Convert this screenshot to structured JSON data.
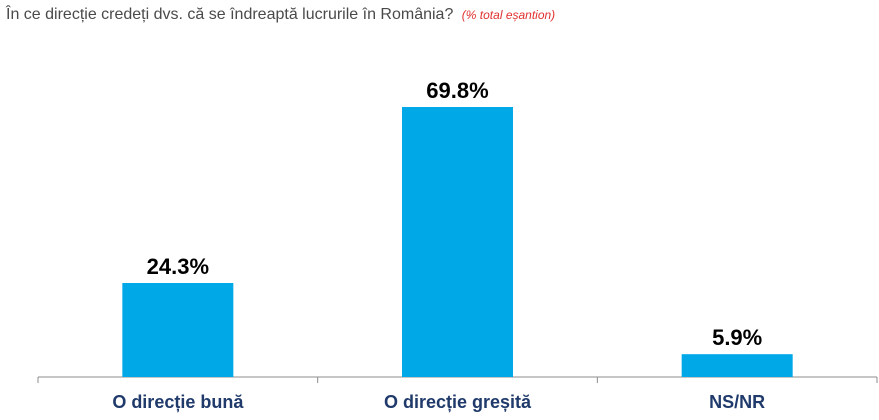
{
  "colors": {
    "bar": "#00A8E8",
    "category_label": "#1F3A6B",
    "value_label": "#000000",
    "note": "#E0312F",
    "axis": "#8C8C8C",
    "title": "#4A4A4A"
  },
  "chart_data": {
    "type": "bar",
    "title": "În ce direcție credeți dvs. că se îndreaptă lucrurile în România?",
    "title_note": "(% total eșantion)",
    "categories": [
      "O direcție bună",
      "O direcție greșită",
      "NS/NR"
    ],
    "values": [
      24.3,
      69.8,
      5.9
    ],
    "value_labels": [
      "24.3%",
      "69.8%",
      "5.9%"
    ],
    "ylim": [
      0,
      80
    ],
    "grid": false,
    "legend": "none"
  }
}
